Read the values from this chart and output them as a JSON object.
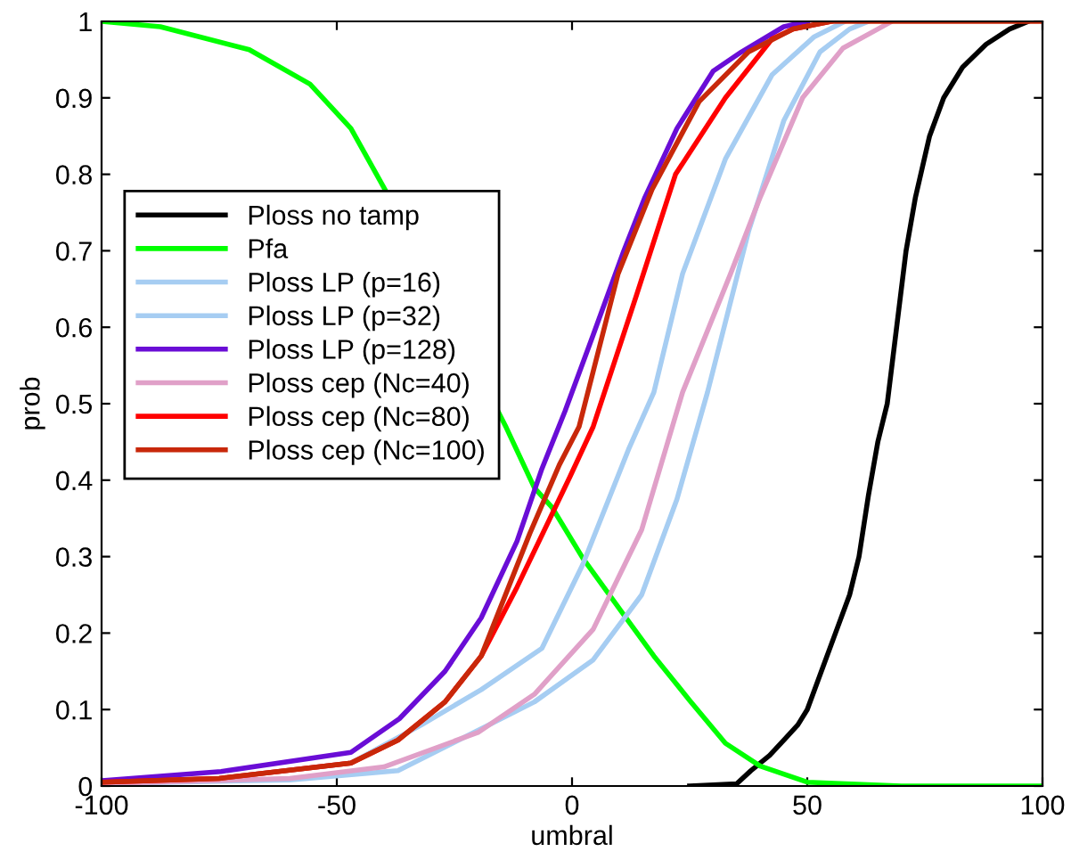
{
  "chart_data": {
    "type": "line",
    "xlabel": "umbral",
    "ylabel": "prob",
    "xlim": [
      -100,
      100
    ],
    "ylim": [
      0,
      1
    ],
    "xticks": [
      -100,
      -50,
      0,
      50,
      100
    ],
    "yticks": [
      0,
      0.1,
      0.2,
      0.3,
      0.4,
      0.5,
      0.6,
      0.7,
      0.8,
      0.9,
      1
    ],
    "grid": false,
    "legend": "left",
    "marker": "none",
    "line_style": "solid",
    "series": [
      {
        "name": "Ploss no tamp",
        "color": "#000000",
        "x": [
          25,
          35,
          38,
          42,
          45,
          48,
          50,
          53,
          56,
          59,
          61,
          63,
          65,
          67,
          69,
          71,
          73,
          76,
          79,
          83,
          88,
          93,
          97
        ],
        "values": [
          0,
          0.003,
          0.02,
          0.04,
          0.06,
          0.08,
          0.1,
          0.15,
          0.2,
          0.25,
          0.3,
          0.38,
          0.45,
          0.5,
          0.6,
          0.7,
          0.77,
          0.85,
          0.9,
          0.94,
          0.97,
          0.99,
          1
        ]
      },
      {
        "name": "Pfa",
        "color": "#00ff00",
        "x": [
          -100,
          -87.5,
          -68.6,
          -55.7,
          -47,
          -39.4,
          -14,
          -8,
          -4.2,
          2.3,
          11,
          17.4,
          25,
          32.6,
          40,
          50,
          70,
          100
        ],
        "values": [
          1,
          0.993,
          0.963,
          0.918,
          0.86,
          0.776,
          0.469,
          0.39,
          0.364,
          0.298,
          0.224,
          0.17,
          0.112,
          0.056,
          0.026,
          0.005,
          0,
          0
        ]
      },
      {
        "name": "Ploss LP (p=16)",
        "color": "#a6cdf2",
        "x": [
          -100,
          -75,
          -47,
          -32,
          -19.3,
          -6.4,
          2.3,
          12,
          17.4,
          23.5,
          32.6,
          42.5,
          51.5,
          58
        ],
        "values": [
          0.005,
          0.01,
          0.03,
          0.08,
          0.126,
          0.18,
          0.29,
          0.44,
          0.515,
          0.67,
          0.82,
          0.93,
          0.98,
          1
        ]
      },
      {
        "name": "Ploss LP (p=32)",
        "color": "#a6cdf2",
        "x": [
          -100,
          -60,
          -37,
          -19.3,
          -8,
          4.5,
          14.8,
          22.3,
          28.8,
          37.5,
          45,
          52.7,
          59,
          63
        ],
        "values": [
          0.003,
          0.008,
          0.02,
          0.075,
          0.11,
          0.165,
          0.25,
          0.375,
          0.515,
          0.725,
          0.87,
          0.96,
          0.99,
          1
        ]
      },
      {
        "name": "Ploss LP (p=128)",
        "color": "#6a0dd6",
        "x": [
          -100,
          -74.6,
          -47,
          -36.7,
          -27,
          -19.3,
          -11.7,
          -6.4,
          -1.5,
          4.5,
          11,
          15.5,
          22.3,
          30,
          36,
          45,
          50
        ],
        "values": [
          0.007,
          0.019,
          0.044,
          0.088,
          0.15,
          0.22,
          0.32,
          0.415,
          0.49,
          0.59,
          0.7,
          0.77,
          0.86,
          0.935,
          0.96,
          0.993,
          1
        ]
      },
      {
        "name": "Ploss cep (Nc=40)",
        "color": "#e0a0c8",
        "x": [
          -100,
          -60,
          -40,
          -20,
          -8,
          4.5,
          14.8,
          23.5,
          33.7,
          40,
          49,
          57.6,
          65,
          68
        ],
        "values": [
          0.003,
          0.01,
          0.025,
          0.07,
          0.12,
          0.205,
          0.335,
          0.515,
          0.67,
          0.77,
          0.9,
          0.965,
          0.99,
          1
        ]
      },
      {
        "name": "Ploss cep (Nc=80)",
        "color": "#ff0000",
        "x": [
          -100,
          -75,
          -47,
          -37,
          -27,
          -19.3,
          -11.7,
          -0.4,
          4.5,
          13.6,
          22,
          32.6,
          42.5,
          47,
          55
        ],
        "values": [
          0.005,
          0.01,
          0.03,
          0.06,
          0.11,
          0.17,
          0.26,
          0.405,
          0.47,
          0.64,
          0.8,
          0.9,
          0.977,
          0.99,
          1
        ]
      },
      {
        "name": "Ploss cep (Nc=100)",
        "color": "#c8280a",
        "x": [
          -100,
          -75,
          -47,
          -37,
          -27,
          -19.3,
          -9,
          -2.7,
          1.5,
          9.8,
          17,
          27,
          37.5,
          47,
          55,
          100
        ],
        "values": [
          0.005,
          0.01,
          0.03,
          0.06,
          0.11,
          0.17,
          0.33,
          0.42,
          0.47,
          0.67,
          0.78,
          0.895,
          0.96,
          0.99,
          1,
          1
        ]
      }
    ]
  }
}
